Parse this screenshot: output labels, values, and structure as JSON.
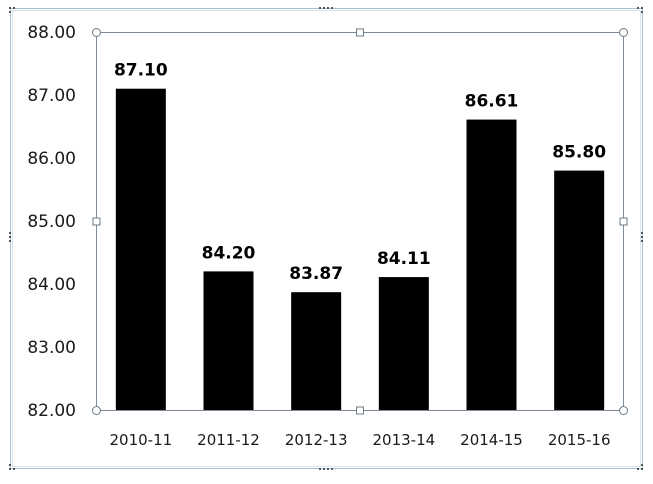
{
  "chart_data": {
    "type": "bar",
    "categories": [
      "2010-11",
      "2011-12",
      "2012-13",
      "2013-14",
      "2014-15",
      "2015-16"
    ],
    "values": [
      87.1,
      84.2,
      83.87,
      84.11,
      86.61,
      85.8
    ],
    "data_labels": [
      "87.10",
      "84.20",
      "83.87",
      "84.11",
      "86.61",
      "85.80"
    ],
    "y_ticks": [
      "82.00",
      "83.00",
      "84.00",
      "85.00",
      "86.00",
      "87.00",
      "88.00"
    ],
    "ylim": [
      82,
      88
    ],
    "title": "",
    "xlabel": "",
    "ylabel": "",
    "grid": false,
    "bar_color": "#000000",
    "selection_color": "#7f8c99",
    "frame_color": "#a7c4d6"
  }
}
